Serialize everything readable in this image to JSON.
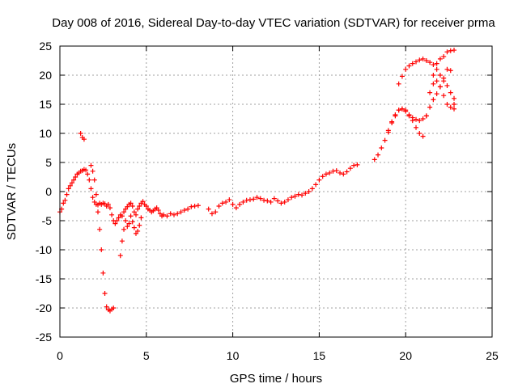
{
  "chart_data": {
    "type": "scatter",
    "title": "Day 008 of 2016, Sidereal Day-to-day VTEC variation (SDTVAR) for receiver prma",
    "xlabel": "GPS time / hours",
    "ylabel": "SDTVAR / TECUs",
    "xlim": [
      0,
      25
    ],
    "ylim": [
      -25,
      25
    ],
    "x_ticks": [
      "0",
      "5",
      "10",
      "15",
      "20",
      "25"
    ],
    "y_ticks": [
      "25",
      "20",
      "15",
      "10",
      "5",
      "0",
      "-5",
      "-10",
      "-15",
      "-20",
      "-25"
    ],
    "grid": true,
    "legend": "none",
    "marker": "+",
    "marker_color": "#ff0000",
    "series": [
      {
        "x": [
          0.0,
          0.1,
          0.2,
          0.3,
          0.4,
          0.5,
          0.6,
          0.7,
          0.8,
          0.9,
          1.0,
          1.1,
          1.2,
          1.3,
          1.4,
          1.5,
          1.6,
          1.7,
          1.8,
          1.9,
          2.0,
          2.1,
          2.2,
          2.3,
          2.4,
          2.5,
          2.6,
          2.7,
          2.8,
          2.9,
          3.0,
          3.1,
          3.2,
          3.3,
          3.4,
          3.5,
          3.6,
          3.7,
          3.8,
          3.9,
          4.0,
          4.1,
          4.2,
          4.3,
          4.4,
          4.5,
          4.6,
          4.7,
          4.8,
          4.9,
          5.0,
          5.1,
          5.2,
          5.3,
          5.4,
          5.5,
          5.6,
          5.7,
          5.8,
          5.9,
          6.0,
          6.2,
          6.4,
          6.6,
          6.8,
          7.0,
          7.2,
          7.4,
          7.6,
          7.8,
          8.0,
          8.6,
          8.8,
          9.0,
          9.2,
          9.4,
          9.6,
          9.8,
          10.0,
          10.2,
          10.4,
          10.6,
          10.8,
          11.0,
          11.2,
          11.4,
          11.6,
          11.8,
          12.0,
          12.2,
          12.4,
          12.6,
          12.8,
          13.0,
          13.2,
          13.4,
          13.6,
          13.8,
          14.0,
          14.2,
          14.4,
          14.6,
          14.8,
          15.0,
          15.2,
          15.4,
          15.6,
          15.8,
          16.0,
          16.2,
          16.4,
          16.6,
          16.8,
          17.0,
          17.2,
          18.2,
          18.4,
          18.6,
          18.8,
          19.0,
          19.2,
          19.4,
          19.6,
          19.8,
          20.0,
          20.2,
          20.4,
          20.6,
          20.8,
          21.0,
          21.2,
          21.4,
          21.6,
          21.8,
          22.0,
          22.2,
          22.4,
          22.6,
          22.8
        ],
        "y": [
          -3.5,
          -3.0,
          -2.0,
          -1.5,
          -0.5,
          0.5,
          1.0,
          1.5,
          2.0,
          2.5,
          3.0,
          3.2,
          3.5,
          3.6,
          3.8,
          3.7,
          3.0,
          2.0,
          0.5,
          -1.0,
          -1.8,
          -2.2,
          -2.3,
          -2.0,
          -2.2,
          -2.0,
          -2.1,
          -2.5,
          -2.2,
          -2.8,
          -4.0,
          -5.0,
          -5.5,
          -5.0,
          -4.5,
          -4.0,
          -4.2,
          -3.5,
          -3.0,
          -2.6,
          -2.2,
          -2.0,
          -2.5,
          -3.5,
          -4.0,
          -3.0,
          -2.5,
          -2.0,
          -1.7,
          -2.2,
          -2.5,
          -3.0,
          -3.2,
          -3.5,
          -3.3,
          -3.0,
          -2.8,
          -3.2,
          -3.8,
          -4.2,
          -4.0,
          -4.2,
          -3.8,
          -4.0,
          -3.8,
          -3.5,
          -3.2,
          -3.0,
          -2.6,
          -2.5,
          -2.4,
          -3.0,
          -3.8,
          -3.5,
          -2.5,
          -2.0,
          -1.8,
          -1.4,
          -2.2,
          -2.8,
          -2.2,
          -1.8,
          -1.5,
          -1.4,
          -1.3,
          -1.0,
          -1.2,
          -1.5,
          -1.6,
          -1.8,
          -1.2,
          -1.6,
          -2.0,
          -1.8,
          -1.4,
          -1.0,
          -0.8,
          -0.5,
          -0.6,
          -0.3,
          0.0,
          0.5,
          1.2,
          2.0,
          2.6,
          3.0,
          3.2,
          3.5,
          3.6,
          3.2,
          3.0,
          3.4,
          4.0,
          4.5,
          4.6,
          5.5,
          6.3,
          7.5,
          8.8,
          10.2,
          11.8,
          13.2,
          14.0,
          14.2,
          13.8,
          13.2,
          12.7,
          12.4,
          12.2,
          12.5,
          13.0,
          14.5,
          15.8,
          16.8,
          18.0,
          19.5,
          21.0,
          20.8,
          15.0
        ]
      },
      {
        "x": [
          1.2,
          1.3,
          1.4
        ],
        "y": [
          10.0,
          9.3,
          9.0
        ]
      },
      {
        "x": [
          1.8,
          1.9,
          2.0,
          2.1,
          2.2,
          2.3,
          2.4,
          2.5,
          2.6,
          2.7,
          2.8,
          2.9,
          3.0,
          3.1
        ],
        "y": [
          4.5,
          3.5,
          2.0,
          -0.5,
          -3.5,
          -6.5,
          -10.0,
          -14.0,
          -17.5,
          -19.8,
          -20.3,
          -20.5,
          -20.2,
          -20.0
        ]
      },
      {
        "x": [
          3.5,
          3.6,
          3.7,
          3.8,
          3.9,
          4.0,
          4.1,
          4.2,
          4.3,
          4.4,
          4.5,
          4.6,
          4.7
        ],
        "y": [
          -11.0,
          -8.5,
          -6.5,
          -5.0,
          -6.0,
          -5.5,
          -4.2,
          -5.2,
          -6.2,
          -7.2,
          -6.8,
          -5.8,
          -4.5
        ]
      },
      {
        "x": [
          19.0,
          19.2,
          19.4,
          19.6,
          19.8,
          20.0,
          20.2,
          20.4,
          20.6,
          20.8,
          21.0,
          21.2,
          21.4,
          21.6,
          21.8,
          22.0,
          22.2,
          22.4,
          22.6,
          22.8
        ],
        "y": [
          10.5,
          12.0,
          13.0,
          14.0,
          14.2,
          14.0,
          13.0,
          12.2,
          11.0,
          10.0,
          9.5,
          13.0,
          17.0,
          20.0,
          22.0,
          22.8,
          23.2,
          24.0,
          24.2,
          24.3
        ]
      },
      {
        "x": [
          19.6,
          19.8,
          20.0,
          20.2,
          20.4,
          20.6,
          20.8,
          21.0,
          21.2,
          21.4,
          21.6,
          21.8,
          22.0,
          22.2,
          22.4,
          22.6,
          22.8
        ],
        "y": [
          18.5,
          19.8,
          21.0,
          21.6,
          22.0,
          22.3,
          22.6,
          22.8,
          22.5,
          22.2,
          21.8,
          21.0,
          20.0,
          19.0,
          18.2,
          17.0,
          16.0
        ]
      },
      {
        "x": [
          21.6,
          21.8,
          22.0,
          22.2,
          22.4,
          22.6,
          22.8
        ],
        "y": [
          18.5,
          19.0,
          18.0,
          16.5,
          15.0,
          14.5,
          14.2
        ]
      }
    ]
  }
}
